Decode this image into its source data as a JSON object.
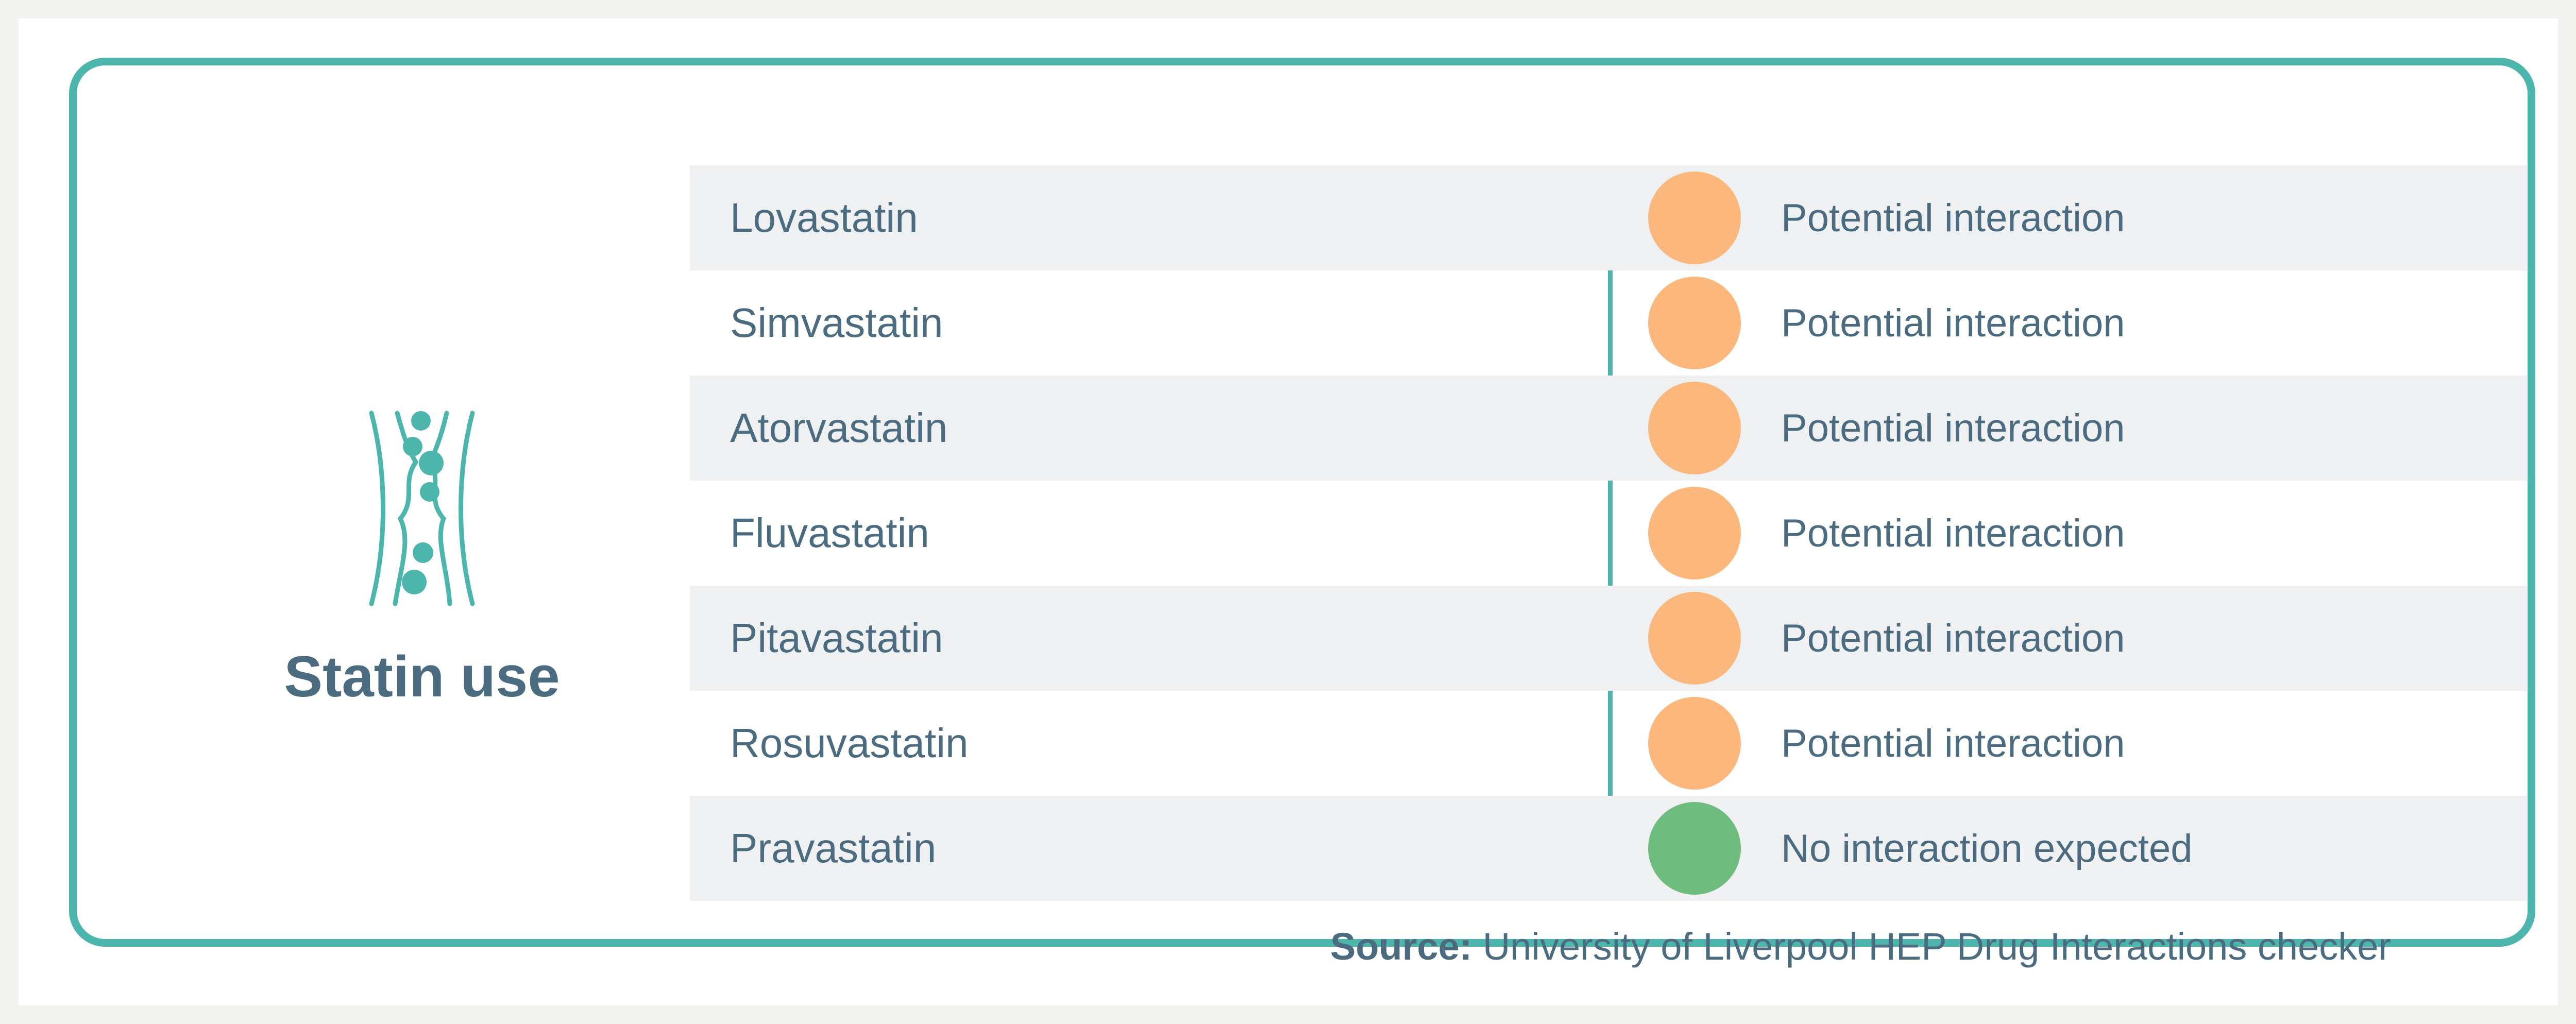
{
  "title": "Statin use",
  "icon": "blood-vessel-icon",
  "colors": {
    "accent": "#4db6ac",
    "text": "#4b6c80",
    "potential": "#fbb77c",
    "none": "#6fbd7e",
    "row_shade": "#eef0f2"
  },
  "rows": [
    {
      "drug": "Lovastatin",
      "status": "Potential interaction",
      "level": "potential"
    },
    {
      "drug": "Simvastatin",
      "status": "Potential interaction",
      "level": "potential"
    },
    {
      "drug": "Atorvastatin",
      "status": "Potential interaction",
      "level": "potential"
    },
    {
      "drug": "Fluvastatin",
      "status": "Potential interaction",
      "level": "potential"
    },
    {
      "drug": "Pitavastatin",
      "status": "Potential interaction",
      "level": "potential"
    },
    {
      "drug": "Rosuvastatin",
      "status": "Potential interaction",
      "level": "potential"
    },
    {
      "drug": "Pravastatin",
      "status": "No interaction expected",
      "level": "none"
    }
  ],
  "source": {
    "label": "Source:",
    "text": " University of Liverpool HEP Drug Interactions checker"
  }
}
